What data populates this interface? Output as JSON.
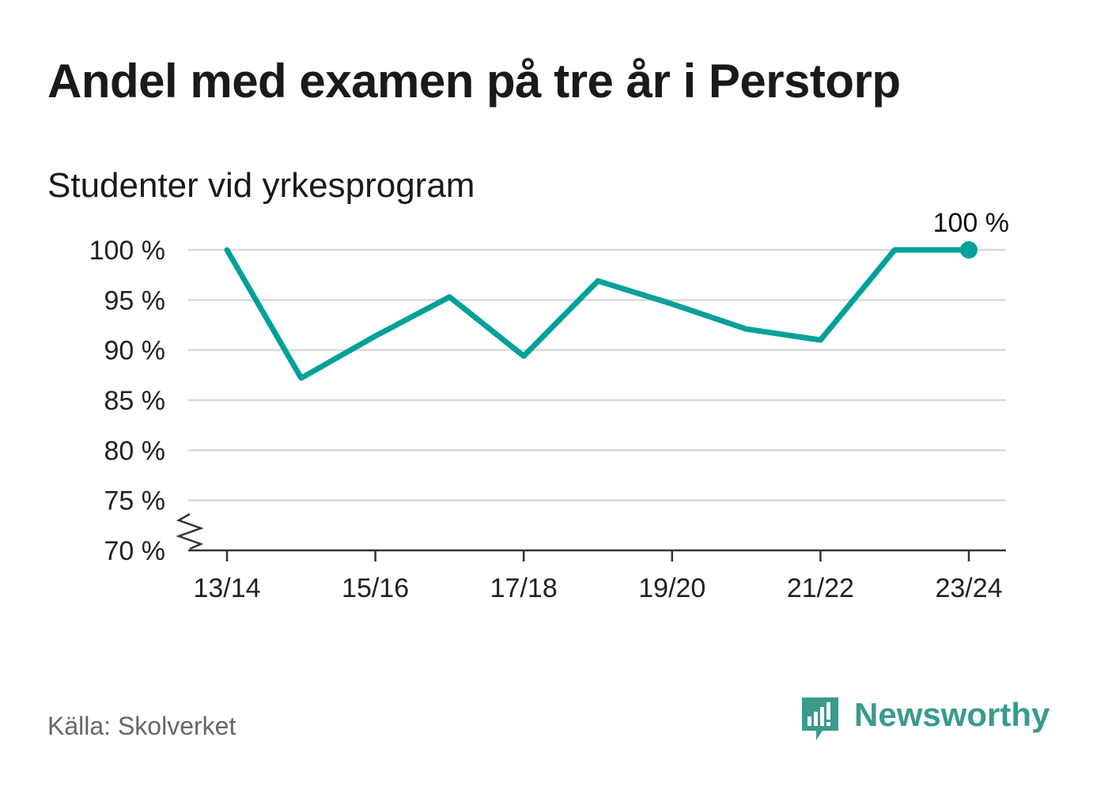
{
  "title": "Andel med examen på tre år i Perstorp",
  "subtitle": "Studenter vid yrkesprogram",
  "source": "Källa: Skolverket",
  "brand": "Newsworthy",
  "colors": {
    "line": "#00a19a",
    "grid": "#d9d9d9",
    "axis": "#333333",
    "brand": "#3a9a8e"
  },
  "chart_data": {
    "type": "line",
    "title": "Andel med examen på tre år i Perstorp",
    "subtitle": "Studenter vid yrkesprogram",
    "x": [
      "13/14",
      "14/15",
      "15/16",
      "16/17",
      "17/18",
      "18/19",
      "19/20",
      "20/21",
      "21/22",
      "22/23",
      "23/24"
    ],
    "xticks": [
      "13/14",
      "15/16",
      "17/18",
      "19/20",
      "21/22",
      "23/24"
    ],
    "series": [
      {
        "values": [
          100,
          87.2,
          91.4,
          95.3,
          89.4,
          96.9,
          94.6,
          92.1,
          91.0,
          100,
          100
        ]
      }
    ],
    "yticks": [
      "70 %",
      "75 %",
      "80 %",
      "85 %",
      "90 %",
      "95 %",
      "100 %"
    ],
    "ylim": [
      70,
      100
    ],
    "axis_break": true,
    "grid": true,
    "last_value_label": "100 %"
  }
}
